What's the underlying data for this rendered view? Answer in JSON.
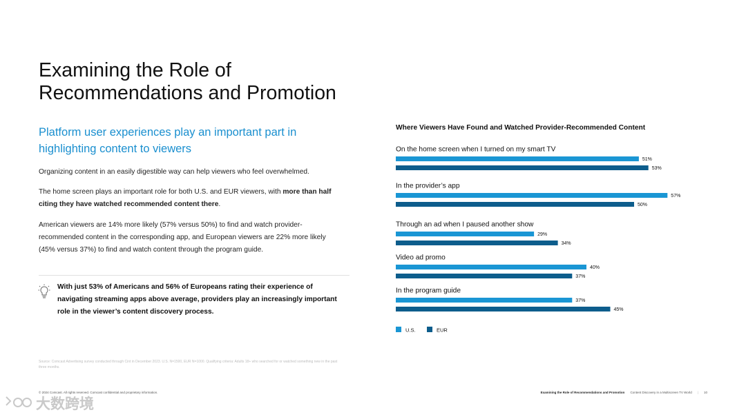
{
  "title": "Examining the Role of Recommendations and Promotion",
  "subtitle": "Platform user experiences play an important part in highlighting content to viewers",
  "paragraphs": {
    "p1": "Organizing content in an easily digestible way can help viewers who feel overwhelmed.",
    "p2_pre": "The home screen plays an important role for both U.S. and EUR viewers, with ",
    "p2_bold": "more than half citing they have watched recommended content there",
    "p2_post": ".",
    "p3": "American viewers are 14% more likely (57% versus 50%) to find and watch provider-recommended content in the corresponding app, and European viewers are 22% more likely (45% versus 37%) to find and watch content through the program guide."
  },
  "callout": "With just 53% of Americans and 56% of Europeans rating their experience of navigating streaming apps above average, providers play an increasingly important role in the viewer’s content discovery process.",
  "source": "Source: Comcast Advertising survey conducted through Cint in December 2023. U.S. N=1500, EUR N=1000. Qualifying criteria: Adults 18+ who searched for or watched something new in the past three months.",
  "footer": {
    "left": "© 2024 Comcast. All rights reserved. Comcast confidential and proprietary information.",
    "section": "Examining the Role of Recommendations and Promotion",
    "report": "Content Discovery in a Multiscreen TV World",
    "page": "10"
  },
  "watermark": "大数跨境",
  "chart_data": {
    "type": "bar",
    "orientation": "horizontal",
    "title": "Where Viewers Have Found and Watched Provider-Recommended Content",
    "categories": [
      "On the home screen when I turned on my smart TV",
      "In the provider’s app",
      "Through an ad when I paused another show",
      "Video ad promo",
      "In the program guide"
    ],
    "series": [
      {
        "name": "U.S.",
        "color": "#1a96d4",
        "values": [
          51,
          57,
          29,
          40,
          37
        ]
      },
      {
        "name": "EUR",
        "color": "#0d5d8c",
        "values": [
          53,
          50,
          34,
          37,
          45
        ]
      }
    ],
    "value_suffix": "%",
    "legend": "bottom-left",
    "grid": false
  }
}
